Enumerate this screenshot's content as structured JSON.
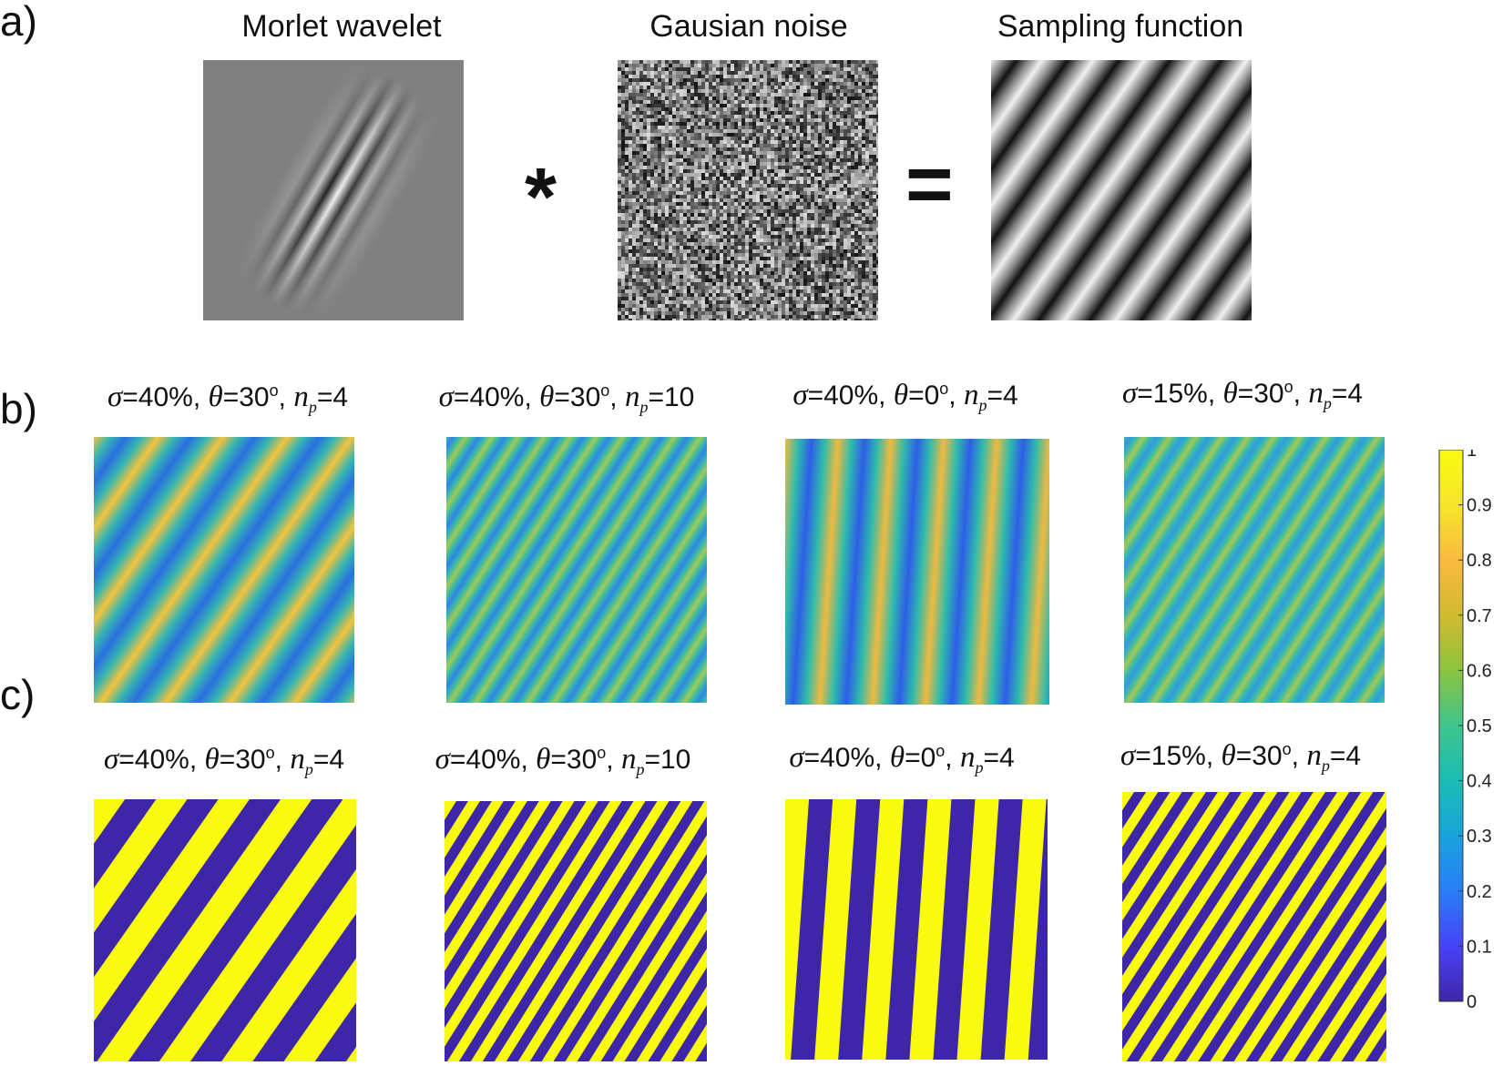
{
  "panel_a": {
    "letter": "a)",
    "titles": [
      "Morlet wavelet",
      "Gausian noise",
      "Sampling function"
    ],
    "op_convolve": "*",
    "op_equals": "="
  },
  "panel_b": {
    "letter": "b)",
    "params": [
      {
        "sigma": "40%",
        "theta": "30",
        "np": "4"
      },
      {
        "sigma": "40%",
        "theta": "30",
        "np": "10"
      },
      {
        "sigma": "40%",
        "theta": "0",
        "np": "4"
      },
      {
        "sigma": "15%",
        "theta": "30",
        "np": "4"
      }
    ]
  },
  "panel_c": {
    "letter": "c)",
    "params": [
      {
        "sigma": "40%",
        "theta": "30",
        "np": "4"
      },
      {
        "sigma": "40%",
        "theta": "30",
        "np": "10"
      },
      {
        "sigma": "40%",
        "theta": "0",
        "np": "4"
      },
      {
        "sigma": "15%",
        "theta": "30",
        "np": "4"
      }
    ]
  },
  "colorbar": {
    "ticks": [
      "0",
      "0.1",
      "0.2",
      "0.3",
      "0.4",
      "0.5",
      "0.6",
      "0.7",
      "0.8",
      "0.9",
      "1"
    ],
    "colormap": [
      "#3e26a8",
      "#4743f8",
      "#2a7ef8",
      "#18a3dc",
      "#1bbcb4",
      "#3ec58d",
      "#8cc43e",
      "#d1bb2f",
      "#fbba3e",
      "#f5e52b",
      "#f9fb0e"
    ],
    "binary_colors": {
      "low": "#3e26a8",
      "high": "#f9fb0e"
    }
  }
}
